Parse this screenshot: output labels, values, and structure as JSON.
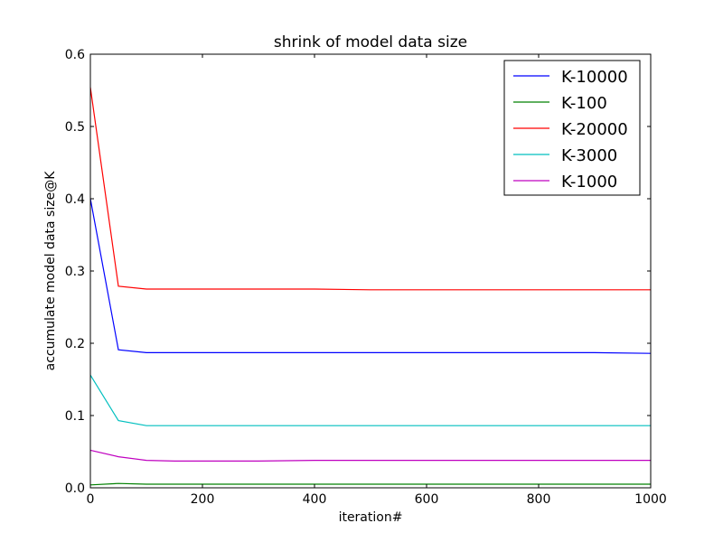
{
  "chart_data": {
    "type": "line",
    "title": "shrink of model data size",
    "xlabel": "iteration#",
    "ylabel": "accumulate model data size@K",
    "xlim": [
      0,
      1000
    ],
    "ylim": [
      0.0,
      0.6
    ],
    "xticks": [
      0,
      200,
      400,
      600,
      800,
      1000
    ],
    "yticks": [
      0.0,
      0.1,
      0.2,
      0.3,
      0.4,
      0.5,
      0.6
    ],
    "xtick_labels": [
      "0",
      "200",
      "400",
      "600",
      "800",
      "1000"
    ],
    "ytick_labels": [
      "0.0",
      "0.1",
      "0.2",
      "0.3",
      "0.4",
      "0.5",
      "0.6"
    ],
    "grid": false,
    "legend_position": "top-right",
    "x": [
      0,
      50,
      100,
      150,
      200,
      300,
      400,
      500,
      600,
      700,
      800,
      900,
      1000
    ],
    "series": [
      {
        "name": "K-10000",
        "color": "#0000ff",
        "values": [
          0.4,
          0.191,
          0.187,
          0.187,
          0.187,
          0.187,
          0.187,
          0.187,
          0.187,
          0.187,
          0.187,
          0.187,
          0.186
        ]
      },
      {
        "name": "K-100",
        "color": "#008000",
        "values": [
          0.004,
          0.006,
          0.005,
          0.005,
          0.005,
          0.005,
          0.005,
          0.005,
          0.005,
          0.005,
          0.005,
          0.005,
          0.005
        ]
      },
      {
        "name": "K-20000",
        "color": "#ff0000",
        "values": [
          0.554,
          0.279,
          0.275,
          0.275,
          0.275,
          0.275,
          0.275,
          0.274,
          0.274,
          0.274,
          0.274,
          0.274,
          0.274
        ]
      },
      {
        "name": "K-3000",
        "color": "#00bfbf",
        "values": [
          0.156,
          0.093,
          0.086,
          0.086,
          0.086,
          0.086,
          0.086,
          0.086,
          0.086,
          0.086,
          0.086,
          0.086,
          0.086
        ]
      },
      {
        "name": "K-1000",
        "color": "#bf00bf",
        "values": [
          0.052,
          0.043,
          0.038,
          0.037,
          0.037,
          0.037,
          0.038,
          0.038,
          0.038,
          0.038,
          0.038,
          0.038,
          0.038
        ]
      }
    ]
  }
}
